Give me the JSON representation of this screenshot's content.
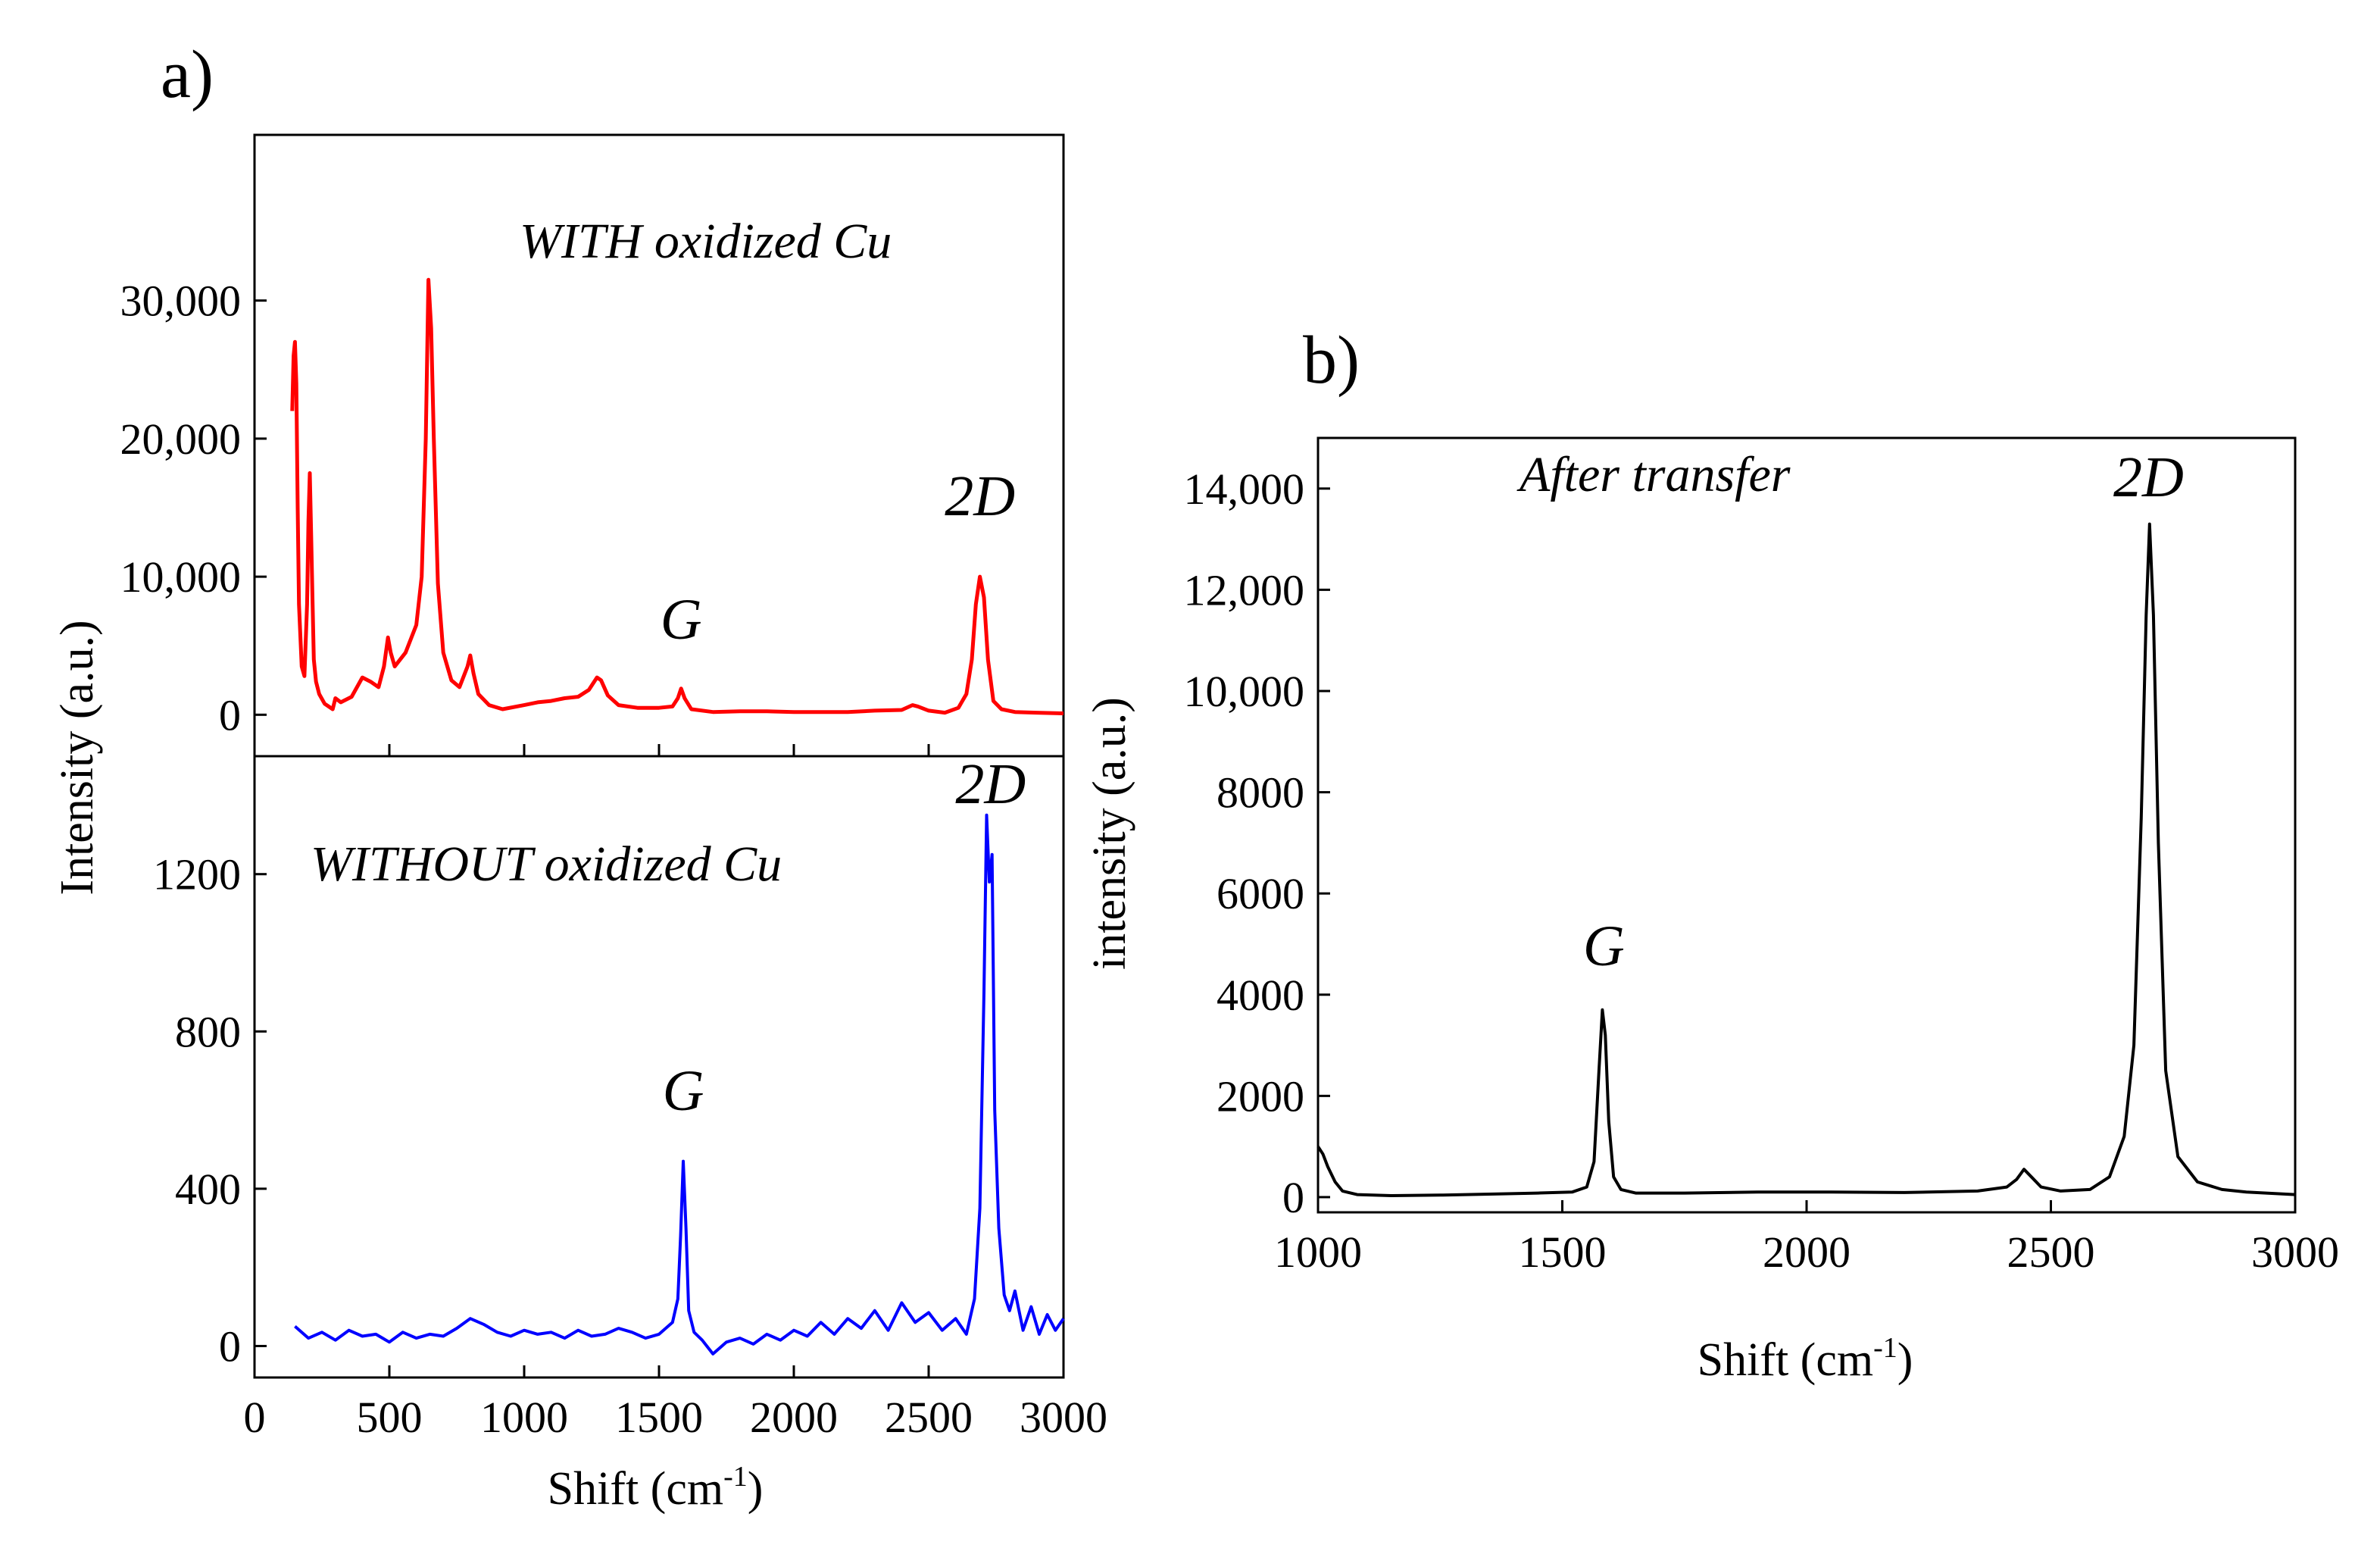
{
  "chart_data": [
    {
      "panel": "a) upper",
      "type": "line",
      "color": "#ff0000",
      "annotation": "WITH oxidized Cu",
      "xlim": [
        0,
        3000
      ],
      "ylim": [
        -3000,
        42000
      ],
      "yticks": [
        0,
        10000,
        20000,
        30000
      ],
      "ytick_labels": [
        "0",
        "10,000",
        "20,000",
        "30,000"
      ],
      "peaks": [
        {
          "label": "G",
          "x": 1582
        },
        {
          "label": "2D",
          "x": 2690
        }
      ],
      "series": [
        {
          "name": "WITH oxidized Cu",
          "x": [
            140,
            145,
            150,
            155,
            160,
            165,
            175,
            185,
            195,
            200,
            205,
            210,
            215,
            220,
            228,
            240,
            260,
            290,
            300,
            320,
            360,
            400,
            430,
            460,
            480,
            495,
            505,
            520,
            560,
            600,
            620,
            635,
            645,
            655,
            665,
            680,
            700,
            730,
            760,
            790,
            800,
            812,
            830,
            870,
            920,
            1000,
            1050,
            1100,
            1150,
            1200,
            1240,
            1270,
            1285,
            1310,
            1350,
            1420,
            1500,
            1550,
            1570,
            1582,
            1595,
            1620,
            1700,
            1800,
            1900,
            2000,
            2100,
            2200,
            2300,
            2400,
            2440,
            2460,
            2500,
            2560,
            2610,
            2640,
            2660,
            2675,
            2690,
            2705,
            2720,
            2740,
            2770,
            2820,
            2900,
            3000
          ],
          "values": [
            22000,
            26000,
            27000,
            24000,
            15000,
            8000,
            3500,
            2800,
            8000,
            14000,
            17500,
            13000,
            8500,
            4000,
            2400,
            1500,
            800,
            400,
            1200,
            900,
            1300,
            2700,
            2400,
            2000,
            3500,
            5600,
            4500,
            3500,
            4500,
            6500,
            10000,
            20000,
            31500,
            28000,
            20000,
            9500,
            4500,
            2500,
            2000,
            3500,
            4300,
            3000,
            1500,
            700,
            400,
            700,
            900,
            1000,
            1200,
            1300,
            1800,
            2700,
            2500,
            1400,
            700,
            500,
            500,
            600,
            1200,
            1900,
            1200,
            400,
            200,
            250,
            250,
            200,
            200,
            200,
            300,
            350,
            700,
            600,
            300,
            150,
            500,
            1500,
            4000,
            8000,
            10000,
            8500,
            4000,
            1000,
            400,
            200,
            150,
            100
          ]
        }
      ]
    },
    {
      "panel": "a) lower",
      "type": "line",
      "color": "#0000ff",
      "annotation": "WITHOUT oxidized Cu",
      "xlim": [
        0,
        3000
      ],
      "ylim": [
        -80,
        1500
      ],
      "yticks": [
        0,
        400,
        800,
        1200
      ],
      "ytick_labels": [
        "0",
        "400",
        "800",
        "1200"
      ],
      "xticks": [
        0,
        500,
        1000,
        1500,
        2000,
        2500,
        3000
      ],
      "xtick_labels": [
        "0",
        "500",
        "1000",
        "1500",
        "2000",
        "2500",
        "3000"
      ],
      "peaks": [
        {
          "label": "G",
          "x": 1590
        },
        {
          "label": "2D",
          "x": 2730
        }
      ],
      "series": [
        {
          "name": "WITHOUT oxidized Cu",
          "x": [
            150,
            200,
            250,
            300,
            350,
            400,
            450,
            500,
            550,
            600,
            650,
            700,
            750,
            800,
            850,
            900,
            950,
            1000,
            1050,
            1100,
            1150,
            1200,
            1250,
            1300,
            1350,
            1400,
            1450,
            1500,
            1550,
            1570,
            1580,
            1590,
            1600,
            1610,
            1630,
            1660,
            1700,
            1750,
            1800,
            1850,
            1900,
            1950,
            2000,
            2050,
            2100,
            2150,
            2200,
            2250,
            2300,
            2350,
            2400,
            2450,
            2500,
            2550,
            2600,
            2640,
            2670,
            2690,
            2705,
            2715,
            2725,
            2735,
            2745,
            2760,
            2780,
            2800,
            2820,
            2850,
            2880,
            2910,
            2940,
            2970,
            3000
          ],
          "values": [
            50,
            20,
            35,
            15,
            40,
            25,
            30,
            10,
            35,
            20,
            30,
            25,
            45,
            70,
            55,
            35,
            25,
            40,
            30,
            35,
            20,
            40,
            25,
            30,
            45,
            35,
            20,
            30,
            60,
            120,
            280,
            470,
            300,
            90,
            35,
            15,
            -20,
            10,
            20,
            5,
            30,
            15,
            40,
            25,
            60,
            30,
            70,
            45,
            90,
            40,
            110,
            60,
            85,
            40,
            70,
            30,
            120,
            350,
            900,
            1350,
            1180,
            1250,
            600,
            300,
            130,
            90,
            140,
            40,
            100,
            30,
            80,
            40,
            70
          ]
        }
      ],
      "xlabel": "Shift (cm⁻¹)",
      "shared_ylabel": "Intensity (a.u.)"
    },
    {
      "panel": "b)",
      "type": "line",
      "color": "#000000",
      "annotation": "After transfer",
      "xlim": [
        1000,
        3000
      ],
      "ylim": [
        -300,
        15000
      ],
      "yticks": [
        0,
        2000,
        4000,
        6000,
        8000,
        10000,
        12000,
        14000
      ],
      "ytick_labels": [
        "0",
        "2000",
        "4000",
        "6000",
        "8000",
        "10,000",
        "12,000",
        "14,000"
      ],
      "xticks": [
        1000,
        1500,
        2000,
        2500,
        3000
      ],
      "xtick_labels": [
        "1000",
        "1500",
        "2000",
        "2500",
        "3000"
      ],
      "peaks": [
        {
          "label": "G",
          "x": 1585
        },
        {
          "label": "2D",
          "x": 2700
        }
      ],
      "series": [
        {
          "name": "After transfer",
          "x": [
            1000,
            1010,
            1020,
            1035,
            1050,
            1080,
            1150,
            1250,
            1350,
            1450,
            1520,
            1550,
            1565,
            1575,
            1582,
            1588,
            1595,
            1605,
            1620,
            1650,
            1750,
            1900,
            2050,
            2200,
            2350,
            2410,
            2430,
            2445,
            2460,
            2480,
            2520,
            2580,
            2620,
            2650,
            2670,
            2685,
            2695,
            2702,
            2710,
            2720,
            2735,
            2760,
            2800,
            2850,
            2900,
            3000
          ],
          "values": [
            1000,
            850,
            600,
            300,
            120,
            50,
            30,
            40,
            60,
            80,
            100,
            200,
            700,
            2500,
            3700,
            3200,
            1500,
            400,
            150,
            80,
            80,
            100,
            100,
            90,
            120,
            200,
            350,
            550,
            400,
            200,
            120,
            150,
            400,
            1200,
            3000,
            7500,
            11500,
            13300,
            11500,
            7000,
            2500,
            800,
            300,
            150,
            100,
            50
          ]
        }
      ],
      "xlabel": "Shift (cm⁻¹)",
      "ylabel": "intensity (a.u.)"
    }
  ],
  "panel_labels": {
    "a": "a)",
    "b": "b)"
  }
}
